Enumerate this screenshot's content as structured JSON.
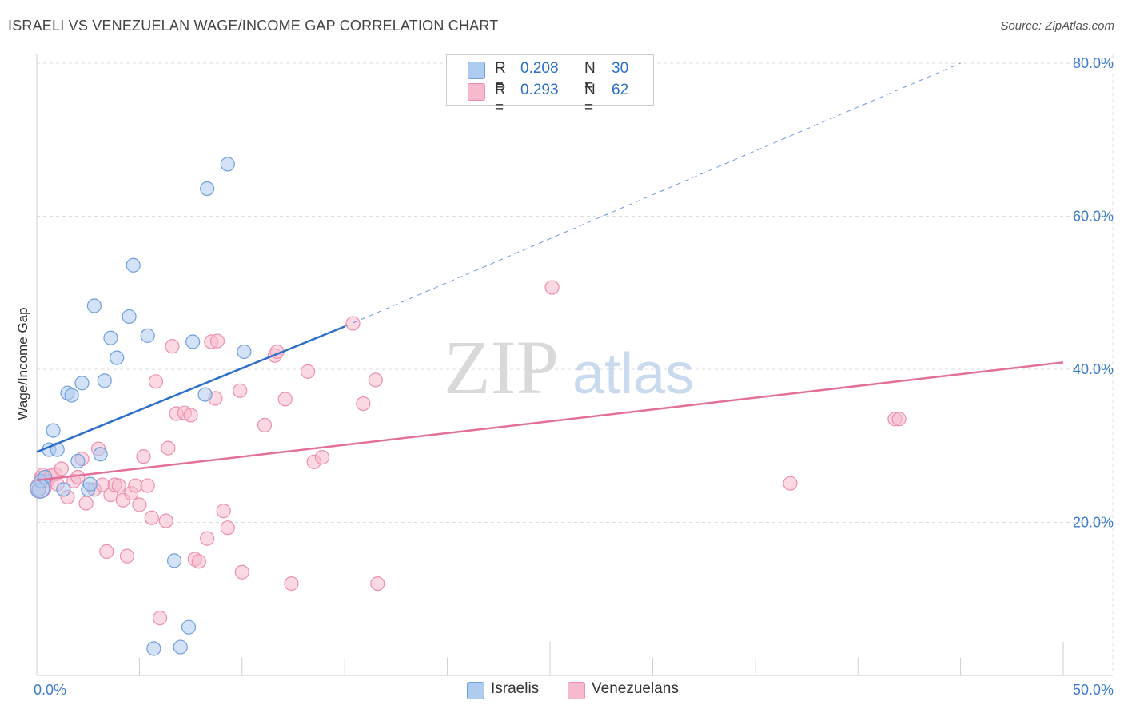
{
  "title": "ISRAELI VS VENEZUELAN WAGE/INCOME GAP CORRELATION CHART",
  "source": "Source: ZipAtlas.com",
  "watermark": {
    "zip": "ZIP",
    "atlas": "atlas"
  },
  "legend": {
    "rows": [
      {
        "r_label": "R =",
        "r_value": "0.208",
        "n_label": "N =",
        "n_value": "30",
        "color": "#aecbf0"
      },
      {
        "r_label": "R =",
        "r_value": "0.293",
        "n_label": "N =",
        "n_value": "62",
        "color": "#f7b9cc"
      }
    ]
  },
  "chart_data": {
    "type": "scatter",
    "title": "ISRAELI VS VENEZUELAN WAGE/INCOME GAP CORRELATION CHART",
    "xlabel": "",
    "ylabel": "Wage/Income Gap",
    "xlim": [
      0,
      50
    ],
    "ylim": [
      0,
      80
    ],
    "x_tick_labels": [
      "0.0%",
      "50.0%"
    ],
    "y_ticks": [
      20,
      40,
      60,
      80
    ],
    "y_tick_labels": [
      "20.0%",
      "40.0%",
      "60.0%",
      "80.0%"
    ],
    "grid": true,
    "legend_position": "top-center",
    "series": [
      {
        "name": "Israelis",
        "color": "#6fa0dd",
        "fill": "#aecbf0",
        "line_color": "#2c6fca",
        "trend": {
          "x": [
            0,
            15
          ],
          "y": [
            29.2,
            45.6
          ],
          "dashed_to": [
            45,
            80
          ]
        },
        "points": [
          [
            0.1,
            24.3
          ],
          [
            0.2,
            25.4
          ],
          [
            0.4,
            25.9
          ],
          [
            0.6,
            29.5
          ],
          [
            0.8,
            32.0
          ],
          [
            1.0,
            29.5
          ],
          [
            1.3,
            24.3
          ],
          [
            1.5,
            36.9
          ],
          [
            1.7,
            36.6
          ],
          [
            2.0,
            28.0
          ],
          [
            2.2,
            38.2
          ],
          [
            2.5,
            24.3
          ],
          [
            2.6,
            25.0
          ],
          [
            2.8,
            48.3
          ],
          [
            3.1,
            28.9
          ],
          [
            3.3,
            38.5
          ],
          [
            3.6,
            44.1
          ],
          [
            3.9,
            41.5
          ],
          [
            4.5,
            46.9
          ],
          [
            4.7,
            53.6
          ],
          [
            5.4,
            44.4
          ],
          [
            5.7,
            3.5
          ],
          [
            6.7,
            15.0
          ],
          [
            7.0,
            3.7
          ],
          [
            7.4,
            6.3
          ],
          [
            7.6,
            43.6
          ],
          [
            8.2,
            36.7
          ],
          [
            8.3,
            63.6
          ],
          [
            9.3,
            66.8
          ],
          [
            10.1,
            42.3
          ]
        ]
      },
      {
        "name": "Venezuelans",
        "color": "#ee8fad",
        "fill": "#f7b9cc",
        "line_color": "#e3709a",
        "trend": {
          "x": [
            0,
            50
          ],
          "y": [
            25.5,
            40.9
          ]
        },
        "points": [
          [
            0.1,
            24.3
          ],
          [
            0.2,
            25.8
          ],
          [
            0.3,
            26.2
          ],
          [
            0.5,
            25.4
          ],
          [
            0.7,
            26.1
          ],
          [
            0.9,
            26.3
          ],
          [
            1.0,
            25.0
          ],
          [
            1.2,
            27.0
          ],
          [
            1.5,
            23.3
          ],
          [
            1.8,
            25.4
          ],
          [
            2.0,
            25.9
          ],
          [
            2.2,
            28.3
          ],
          [
            2.4,
            22.5
          ],
          [
            2.8,
            24.3
          ],
          [
            3.0,
            29.6
          ],
          [
            3.2,
            24.9
          ],
          [
            3.4,
            16.2
          ],
          [
            3.6,
            23.6
          ],
          [
            3.8,
            24.9
          ],
          [
            4.0,
            24.8
          ],
          [
            4.2,
            22.9
          ],
          [
            4.4,
            15.6
          ],
          [
            4.6,
            23.8
          ],
          [
            4.8,
            24.8
          ],
          [
            5.0,
            22.3
          ],
          [
            5.2,
            28.6
          ],
          [
            5.4,
            24.8
          ],
          [
            5.6,
            20.6
          ],
          [
            5.8,
            38.4
          ],
          [
            6.0,
            7.5
          ],
          [
            6.3,
            20.2
          ],
          [
            6.4,
            29.7
          ],
          [
            6.6,
            43.0
          ],
          [
            6.8,
            34.2
          ],
          [
            7.2,
            34.3
          ],
          [
            7.5,
            34.0
          ],
          [
            7.7,
            15.2
          ],
          [
            7.9,
            14.9
          ],
          [
            8.3,
            17.9
          ],
          [
            8.5,
            43.6
          ],
          [
            8.8,
            43.7
          ],
          [
            8.7,
            36.2
          ],
          [
            9.1,
            21.5
          ],
          [
            9.3,
            19.3
          ],
          [
            9.9,
            37.2
          ],
          [
            10.0,
            13.5
          ],
          [
            11.1,
            32.7
          ],
          [
            11.6,
            41.8
          ],
          [
            11.7,
            42.3
          ],
          [
            12.1,
            36.1
          ],
          [
            12.4,
            12.0
          ],
          [
            13.2,
            39.7
          ],
          [
            13.5,
            27.9
          ],
          [
            13.9,
            28.5
          ],
          [
            15.4,
            46.0
          ],
          [
            15.9,
            35.5
          ],
          [
            16.5,
            38.6
          ],
          [
            16.6,
            12.0
          ],
          [
            25.1,
            50.7
          ],
          [
            36.7,
            25.1
          ],
          [
            41.8,
            33.5
          ],
          [
            42.0,
            33.5
          ]
        ]
      }
    ]
  }
}
